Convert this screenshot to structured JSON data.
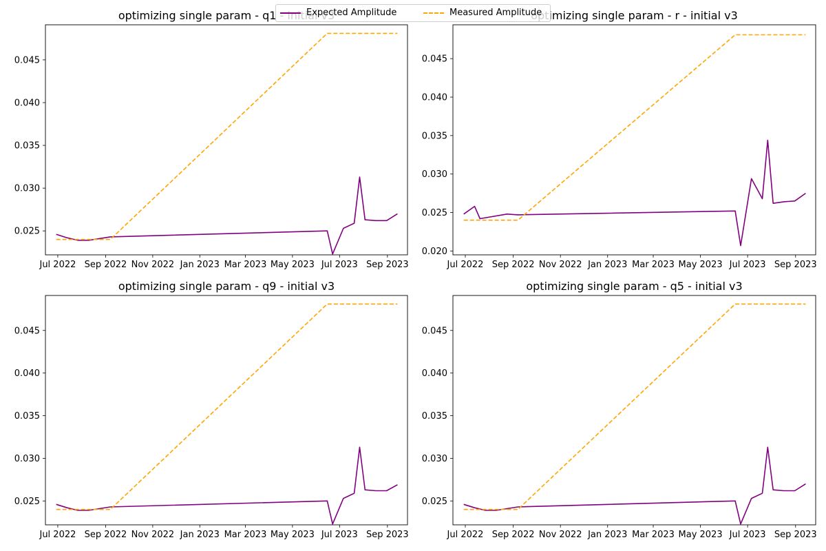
{
  "legend": {
    "expected_label": "Expected Amplitude",
    "measured_label": "Measured Amplitude"
  },
  "colors": {
    "expected": "#800080",
    "measured": "#ffa500"
  },
  "chart_data": [
    {
      "type": "line",
      "title": "optimizing single param - q1 - initial v3",
      "xlabel": "",
      "ylabel": "",
      "x_ticks": [
        "Jul 2022",
        "Sep 2022",
        "Nov 2022",
        "Jan 2023",
        "Mar 2023",
        "May 2023",
        "Jul 2023",
        "Sep 2023"
      ],
      "y_ticks": [
        "0.025",
        "0.030",
        "0.035",
        "0.040",
        "0.045"
      ],
      "ylim": [
        0.0222,
        0.0491
      ],
      "series": [
        {
          "name": "Expected Amplitude",
          "style": "solid",
          "x": [
            "2022-06-29",
            "2022-07-13",
            "2022-07-27",
            "2022-08-10",
            "2022-08-24",
            "2022-09-07",
            "2023-06-15",
            "2023-06-22",
            "2023-07-06",
            "2023-07-20",
            "2023-07-27",
            "2023-08-03",
            "2023-08-17",
            "2023-08-31",
            "2023-09-14"
          ],
          "y": [
            0.0246,
            0.0242,
            0.0239,
            0.0239,
            0.0241,
            0.0243,
            0.025,
            0.0223,
            0.0253,
            0.0259,
            0.0313,
            0.0263,
            0.0262,
            0.0262,
            0.027
          ]
        },
        {
          "name": "Measured Amplitude",
          "style": "dashed",
          "x": [
            "2022-06-29",
            "2022-09-07",
            "2023-06-15",
            "2023-09-14"
          ],
          "y": [
            0.024,
            0.024,
            0.0481,
            0.0481
          ]
        }
      ]
    },
    {
      "type": "line",
      "title": "optimizing single param - r - initial v3",
      "xlabel": "",
      "ylabel": "",
      "x_ticks": [
        "Jul 2022",
        "Sep 2022",
        "Nov 2022",
        "Jan 2023",
        "Mar 2023",
        "May 2023",
        "Jul 2023",
        "Sep 2023"
      ],
      "y_ticks": [
        "0.020",
        "0.025",
        "0.030",
        "0.035",
        "0.040",
        "0.045"
      ],
      "ylim": [
        0.0195,
        0.0494
      ],
      "series": [
        {
          "name": "Expected Amplitude",
          "style": "solid",
          "x": [
            "2022-06-29",
            "2022-07-13",
            "2022-07-20",
            "2022-08-24",
            "2022-09-07",
            "2023-06-15",
            "2023-06-22",
            "2023-07-06",
            "2023-07-20",
            "2023-07-27",
            "2023-08-03",
            "2023-08-17",
            "2023-08-31",
            "2023-09-14"
          ],
          "y": [
            0.0248,
            0.0258,
            0.0242,
            0.0248,
            0.0247,
            0.0252,
            0.0207,
            0.0294,
            0.0268,
            0.0344,
            0.0262,
            0.0264,
            0.0265,
            0.0275
          ]
        },
        {
          "name": "Measured Amplitude",
          "style": "dashed",
          "x": [
            "2022-06-29",
            "2022-09-07",
            "2023-06-15",
            "2023-09-14"
          ],
          "y": [
            0.024,
            0.024,
            0.0481,
            0.0481
          ]
        }
      ]
    },
    {
      "type": "line",
      "title": "optimizing single param - q9 - initial v3",
      "xlabel": "",
      "ylabel": "",
      "x_ticks": [
        "Jul 2022",
        "Sep 2022",
        "Nov 2022",
        "Jan 2023",
        "Mar 2023",
        "May 2023",
        "Jul 2023",
        "Sep 2023"
      ],
      "y_ticks": [
        "0.025",
        "0.030",
        "0.035",
        "0.040",
        "0.045"
      ],
      "ylim": [
        0.0222,
        0.0491
      ],
      "series": [
        {
          "name": "Expected Amplitude",
          "style": "solid",
          "x": [
            "2022-06-29",
            "2022-07-13",
            "2022-07-27",
            "2022-08-10",
            "2022-08-24",
            "2022-09-07",
            "2023-06-15",
            "2023-06-22",
            "2023-07-06",
            "2023-07-20",
            "2023-07-27",
            "2023-08-03",
            "2023-08-17",
            "2023-08-31",
            "2023-09-14"
          ],
          "y": [
            0.0246,
            0.0242,
            0.0239,
            0.0239,
            0.0241,
            0.0243,
            0.025,
            0.0223,
            0.0253,
            0.0259,
            0.0313,
            0.0263,
            0.0262,
            0.0262,
            0.0269
          ]
        },
        {
          "name": "Measured Amplitude",
          "style": "dashed",
          "x": [
            "2022-06-29",
            "2022-09-07",
            "2023-06-15",
            "2023-09-14"
          ],
          "y": [
            0.024,
            0.024,
            0.0481,
            0.0481
          ]
        }
      ]
    },
    {
      "type": "line",
      "title": "optimizing single param - q5 - initial v3",
      "xlabel": "",
      "ylabel": "",
      "x_ticks": [
        "Jul 2022",
        "Sep 2022",
        "Nov 2022",
        "Jan 2023",
        "Mar 2023",
        "May 2023",
        "Jul 2023",
        "Sep 2023"
      ],
      "y_ticks": [
        "0.025",
        "0.030",
        "0.035",
        "0.040",
        "0.045"
      ],
      "ylim": [
        0.0222,
        0.0491
      ],
      "series": [
        {
          "name": "Expected Amplitude",
          "style": "solid",
          "x": [
            "2022-06-29",
            "2022-07-13",
            "2022-07-27",
            "2022-08-10",
            "2022-08-24",
            "2022-09-07",
            "2023-06-15",
            "2023-06-22",
            "2023-07-06",
            "2023-07-20",
            "2023-07-27",
            "2023-08-03",
            "2023-08-17",
            "2023-08-31",
            "2023-09-14"
          ],
          "y": [
            0.0246,
            0.0242,
            0.0239,
            0.0239,
            0.0241,
            0.0243,
            0.025,
            0.0223,
            0.0253,
            0.0259,
            0.0313,
            0.0263,
            0.0262,
            0.0262,
            0.027
          ]
        },
        {
          "name": "Measured Amplitude",
          "style": "dashed",
          "x": [
            "2022-06-29",
            "2022-09-07",
            "2023-06-15",
            "2023-09-14"
          ],
          "y": [
            0.024,
            0.024,
            0.0481,
            0.0481
          ]
        }
      ]
    }
  ]
}
